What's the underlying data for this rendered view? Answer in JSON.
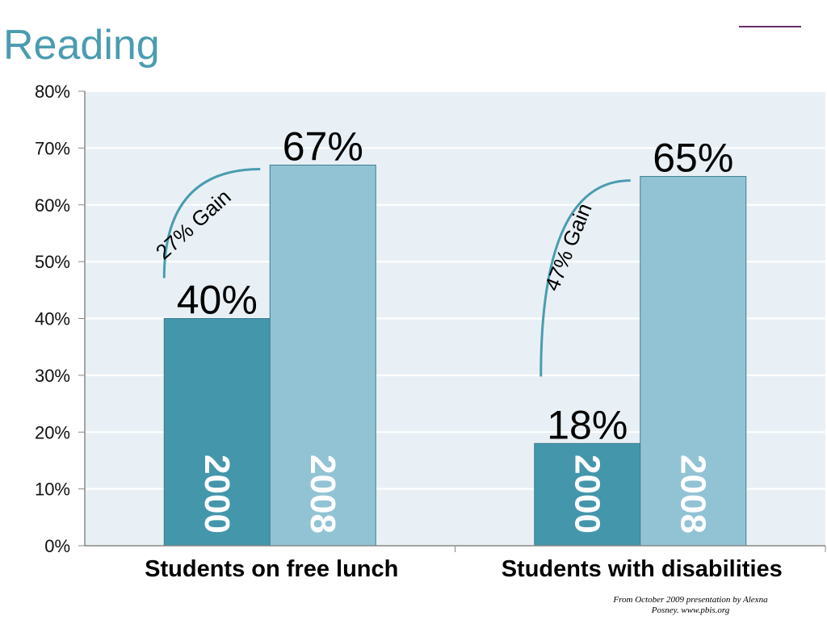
{
  "page": {
    "title": "Reading",
    "credit_line1": "From October 2009 presentation by Alexna",
    "credit_line2": "Posney. www.pbis.org"
  },
  "chart_data": {
    "type": "bar",
    "title": "Reading",
    "categories": [
      "Students on free lunch",
      "Students with disabilities"
    ],
    "series": [
      {
        "name": "2000",
        "values": [
          40,
          18
        ],
        "color": "#4496ab"
      },
      {
        "name": "2008",
        "values": [
          67,
          65
        ],
        "color": "#92c3d4"
      }
    ],
    "value_labels": [
      [
        "40%",
        "18%"
      ],
      [
        "67%",
        "65%"
      ]
    ],
    "annotations": [
      {
        "category": "Students on free lunch",
        "text": "27% Gain"
      },
      {
        "category": "Students with disabilities",
        "text": "47% Gain"
      }
    ],
    "ylim": [
      0,
      80
    ],
    "yticks": [
      0,
      10,
      20,
      30,
      40,
      50,
      60,
      70,
      80
    ],
    "ytick_suffix": "%",
    "grid": true,
    "plot_background": "#e9f0f5",
    "axis_color": "#888888",
    "arc_color": "#4a9cb0"
  }
}
